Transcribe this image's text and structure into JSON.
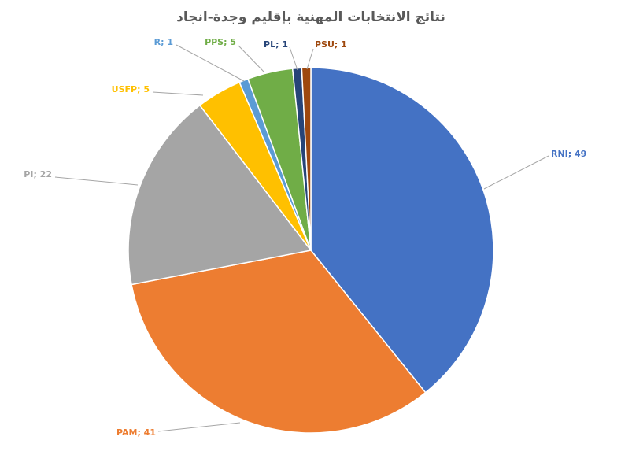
{
  "chart_data": {
    "type": "pie",
    "title": "نتائج الانتخابات المهنية بإقليم وجدة-انجاد",
    "categories": [
      "RNI",
      "PAM",
      "PI",
      "USFP",
      "R",
      "PPS",
      "PL",
      "PSU"
    ],
    "values": [
      49,
      41,
      22,
      5,
      1,
      5,
      1,
      1
    ],
    "value_labels": [
      "RNI; 49",
      "PAM; 41",
      "PI; 22",
      "USFP; 5",
      "R; 1",
      "PPS; 5",
      "PL; 1",
      "PSU; 1"
    ],
    "colors": [
      "#4472c4",
      "#ed7d31",
      "#a5a5a5",
      "#ffc000",
      "#5b9bd5",
      "#70ad47",
      "#264478",
      "#9e480e"
    ]
  }
}
